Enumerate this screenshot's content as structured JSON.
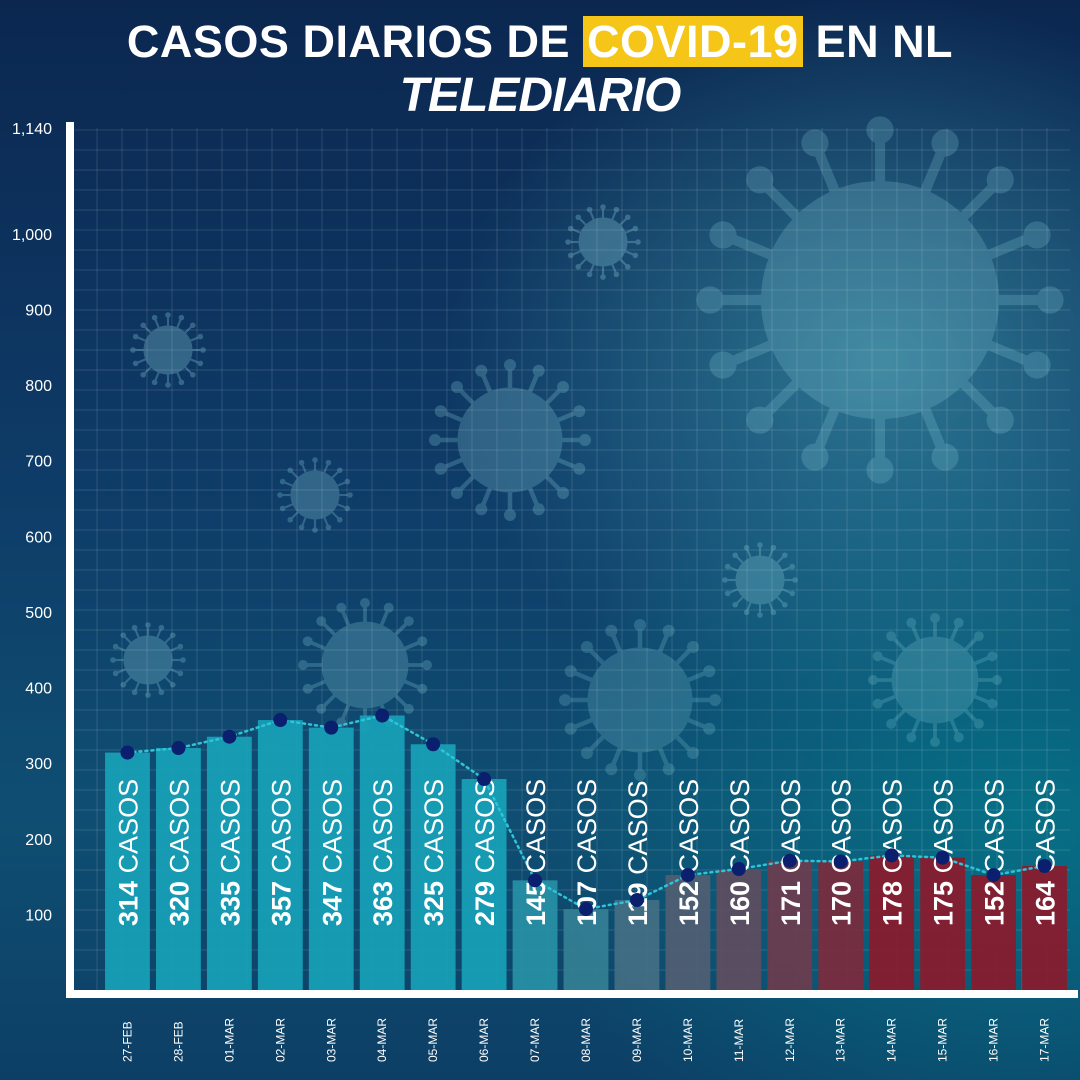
{
  "title": {
    "before": "CASOS DIARIOS DE ",
    "highlight": "COVID-19",
    "after": " EN NL"
  },
  "brand": "TELEDIARIO",
  "colors": {
    "highlight": "#f5c518",
    "bar_teal": "#17a2b8",
    "bar_red": "#8b1a2b",
    "line": "#2ec4d6",
    "point": "#0a1f6e"
  },
  "chart_data": {
    "type": "bar",
    "categories": [
      "27-FEB",
      "28-FEB",
      "01-MAR",
      "02-MAR",
      "03-MAR",
      "04-MAR",
      "05-MAR",
      "06-MAR",
      "07-MAR",
      "08-MAR",
      "09-MAR",
      "10-MAR",
      "11-MAR",
      "12-MAR",
      "13-MAR",
      "14-MAR",
      "15-MAR",
      "16-MAR",
      "17-MAR"
    ],
    "values": [
      314,
      320,
      335,
      357,
      347,
      363,
      325,
      279,
      145,
      107,
      119,
      152,
      160,
      171,
      170,
      178,
      175,
      152,
      164
    ],
    "value_suffix": "CASOS",
    "y_ticks": [
      {
        "value": 100,
        "label": "100"
      },
      {
        "value": 200,
        "label": "200"
      },
      {
        "value": 300,
        "label": "300"
      },
      {
        "value": 400,
        "label": "400"
      },
      {
        "value": 500,
        "label": "500"
      },
      {
        "value": 600,
        "label": "600"
      },
      {
        "value": 700,
        "label": "700"
      },
      {
        "value": 800,
        "label": "800"
      },
      {
        "value": 900,
        "label": "900"
      },
      {
        "value": 1000,
        "label": "1,000"
      },
      {
        "value": 1140,
        "label": "1,140"
      }
    ],
    "ylim": [
      0,
      1140
    ],
    "overlay": "dotted line with markers connecting bar tops",
    "grid": true
  }
}
